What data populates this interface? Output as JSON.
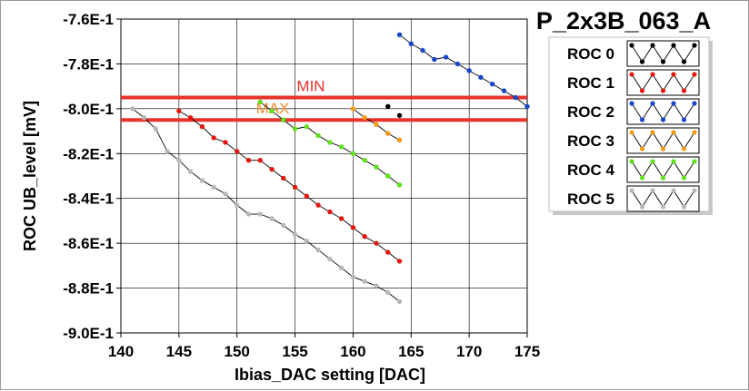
{
  "chart_data": {
    "type": "line",
    "title": "P_2x3B_063_A",
    "xlabel": "Ibias_DAC setting [DAC]",
    "ylabel": "ROC UB_level [mV]",
    "xlim": [
      140,
      175
    ],
    "ylim": [
      -0.9,
      -0.76
    ],
    "x_ticks": [
      140,
      145,
      150,
      155,
      160,
      165,
      170,
      175
    ],
    "x_tick_labels": [
      "140",
      "145",
      "150",
      "155",
      "160",
      "165",
      "170",
      "175"
    ],
    "y_ticks": [
      -0.76,
      -0.78,
      -0.8,
      -0.82,
      -0.84,
      -0.86,
      -0.88,
      -0.9
    ],
    "y_tick_labels": [
      "-7.6E-1",
      "-7.8E-1",
      "-8.0E-1",
      "-8.2E-1",
      "-8.4E-1",
      "-8.6E-1",
      "-8.8E-1",
      "-9.0E-1"
    ],
    "grid": true,
    "legend_position": "right",
    "limits": [
      {
        "label": "MIN",
        "y": -0.795,
        "color": "#e8322a",
        "label_color": "#e8322a"
      },
      {
        "label": "MAX",
        "y": -0.805,
        "color": "#e8322a",
        "label_color": "#ef8a28"
      }
    ],
    "series": [
      {
        "name": "ROC 0",
        "color": "#000000",
        "line_color": "#000000",
        "line": false,
        "x": [
          163,
          164
        ],
        "y": [
          -0.799,
          -0.803
        ]
      },
      {
        "name": "ROC 1",
        "color": "#e5160d",
        "line_color": "#000000",
        "line": true,
        "x": [
          145,
          146,
          147,
          148,
          149,
          150,
          151,
          152,
          153,
          154,
          155,
          156,
          157,
          158,
          159,
          160,
          161,
          162,
          163,
          164
        ],
        "y": [
          -0.801,
          -0.804,
          -0.808,
          -0.813,
          -0.815,
          -0.819,
          -0.823,
          -0.823,
          -0.827,
          -0.831,
          -0.835,
          -0.839,
          -0.843,
          -0.846,
          -0.849,
          -0.853,
          -0.857,
          -0.86,
          -0.864,
          -0.868
        ]
      },
      {
        "name": "ROC 2",
        "color": "#1847c9",
        "line_color": "#000000",
        "line": true,
        "x": [
          164,
          165,
          166,
          167,
          168,
          169,
          170,
          171,
          172,
          173,
          174,
          175
        ],
        "y": [
          -0.767,
          -0.771,
          -0.774,
          -0.778,
          -0.777,
          -0.78,
          -0.783,
          -0.786,
          -0.789,
          -0.792,
          -0.795,
          -0.799
        ]
      },
      {
        "name": "ROC 3",
        "color": "#f29a12",
        "line_color": "#000000",
        "line": true,
        "x": [
          160,
          161,
          162,
          163,
          164
        ],
        "y": [
          -0.8,
          -0.804,
          -0.807,
          -0.811,
          -0.814
        ]
      },
      {
        "name": "ROC 4",
        "color": "#5fe01b",
        "line_color": "#000000",
        "line": true,
        "x": [
          152,
          153,
          154,
          155,
          156,
          157,
          158,
          159,
          160,
          161,
          162,
          163,
          164
        ],
        "y": [
          -0.797,
          -0.801,
          -0.805,
          -0.809,
          -0.808,
          -0.812,
          -0.815,
          -0.817,
          -0.82,
          -0.823,
          -0.826,
          -0.83,
          -0.834
        ]
      },
      {
        "name": "ROC 5",
        "color": "#b8b8b8",
        "line_color": "#000000",
        "line": true,
        "x": [
          141,
          142,
          143,
          144,
          145,
          146,
          147,
          148,
          149,
          150,
          151,
          152,
          153,
          154,
          155,
          156,
          157,
          158,
          159,
          160,
          161,
          162,
          163,
          164
        ],
        "y": [
          -0.8,
          -0.804,
          -0.809,
          -0.819,
          -0.823,
          -0.828,
          -0.832,
          -0.835,
          -0.838,
          -0.843,
          -0.847,
          -0.847,
          -0.849,
          -0.852,
          -0.856,
          -0.859,
          -0.863,
          -0.867,
          -0.871,
          -0.875,
          -0.877,
          -0.879,
          -0.882,
          -0.886
        ]
      }
    ]
  }
}
